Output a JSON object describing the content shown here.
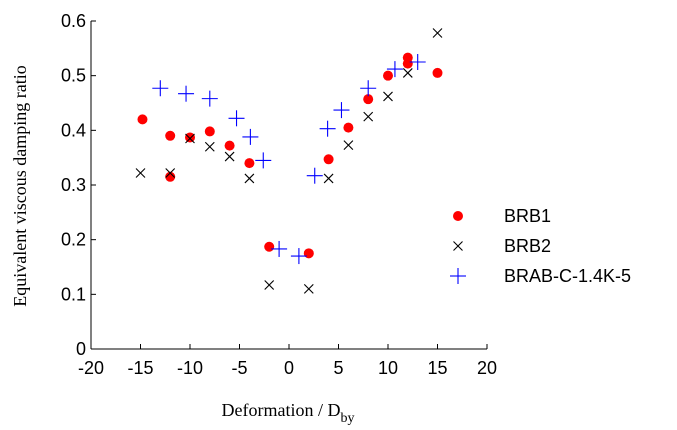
{
  "chart_data": {
    "type": "scatter",
    "title": "",
    "xlabel": "Deformation / D",
    "xlabel_sub": "by",
    "ylabel": "Equivalent viscous damping ratio",
    "xlim": [
      -20,
      20
    ],
    "ylim": [
      0,
      0.6
    ],
    "xticks": [
      -20,
      -15,
      -10,
      -5,
      0,
      5,
      10,
      15,
      20
    ],
    "yticks": [
      0,
      0.1,
      0.2,
      0.3,
      0.4,
      0.5,
      0.6
    ],
    "xtick_labels": [
      "-20",
      "-15",
      "-10",
      "-5",
      "0",
      "5",
      "10",
      "15",
      "20"
    ],
    "ytick_labels": [
      "0",
      "0.1",
      "0.2",
      "0.3",
      "0.4",
      "0.5",
      "0.6"
    ],
    "grid": false,
    "legend_position": "right",
    "series": [
      {
        "name": "BRB1",
        "marker": "filled-circle",
        "color": "#ff0000",
        "points": [
          [
            -14.8,
            0.42
          ],
          [
            -12.0,
            0.39
          ],
          [
            -12.0,
            0.315
          ],
          [
            -10.0,
            0.387
          ],
          [
            -8.0,
            0.398
          ],
          [
            -6.0,
            0.372
          ],
          [
            -4.0,
            0.34
          ],
          [
            -2.0,
            0.187
          ],
          [
            2.0,
            0.175
          ],
          [
            4.0,
            0.347
          ],
          [
            6.0,
            0.405
          ],
          [
            8.0,
            0.457
          ],
          [
            10.0,
            0.5
          ],
          [
            12.0,
            0.522
          ],
          [
            12.0,
            0.533
          ],
          [
            15.0,
            0.505
          ]
        ]
      },
      {
        "name": "BRB2",
        "marker": "x",
        "color": "#000000",
        "points": [
          [
            -15.0,
            0.322
          ],
          [
            -12.0,
            0.322
          ],
          [
            -10.0,
            0.385
          ],
          [
            -8.0,
            0.37
          ],
          [
            -6.0,
            0.352
          ],
          [
            -4.0,
            0.312
          ],
          [
            -2.0,
            0.117
          ],
          [
            2.0,
            0.11
          ],
          [
            4.0,
            0.312
          ],
          [
            6.0,
            0.373
          ],
          [
            8.0,
            0.425
          ],
          [
            10.0,
            0.462
          ],
          [
            12.0,
            0.505
          ],
          [
            15.0,
            0.578
          ]
        ]
      },
      {
        "name": "BRAB-C-1.4K-5",
        "marker": "plus",
        "color": "#0000ff",
        "points": [
          [
            -13.0,
            0.477
          ],
          [
            -10.4,
            0.467
          ],
          [
            -8.0,
            0.458
          ],
          [
            -5.3,
            0.422
          ],
          [
            -3.9,
            0.388
          ],
          [
            -2.6,
            0.345
          ],
          [
            -1.0,
            0.183
          ],
          [
            1.0,
            0.17
          ],
          [
            2.6,
            0.317
          ],
          [
            3.9,
            0.403
          ],
          [
            5.3,
            0.437
          ],
          [
            8.0,
            0.477
          ],
          [
            10.7,
            0.512
          ],
          [
            13.0,
            0.525
          ]
        ]
      }
    ]
  }
}
